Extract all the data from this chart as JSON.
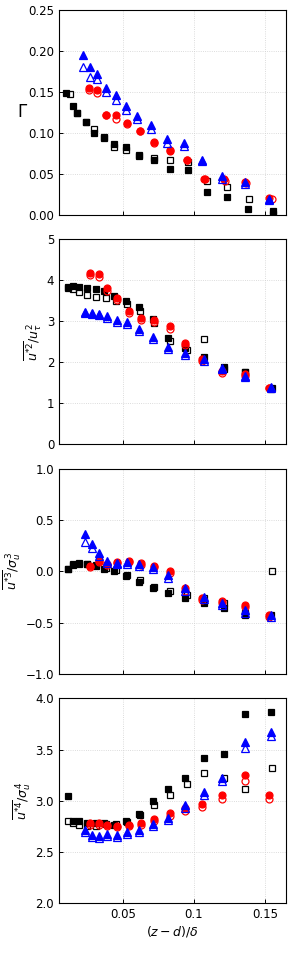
{
  "panel1_ylim": [
    0,
    0.25
  ],
  "panel1_yticks": [
    0,
    0.05,
    0.1,
    0.15,
    0.2,
    0.25
  ],
  "panel2_ylim": [
    0,
    5
  ],
  "panel2_yticks": [
    0,
    1,
    2,
    3,
    4,
    5
  ],
  "panel3_ylim": [
    -1,
    1
  ],
  "panel3_yticks": [
    -1,
    -0.5,
    0,
    0.5,
    1
  ],
  "panel4_ylim": [
    2,
    4
  ],
  "panel4_yticks": [
    2,
    2.5,
    3,
    3.5,
    4
  ],
  "xlabel": "$(z-d)/\\delta$",
  "black_sq_filled_x1": [
    0.01,
    0.015,
    0.018,
    0.024,
    0.03,
    0.037,
    0.044,
    0.052,
    0.061,
    0.072,
    0.083,
    0.096,
    0.109,
    0.123,
    0.138,
    0.156
  ],
  "black_sq_filled_y1": [
    0.148,
    0.133,
    0.124,
    0.113,
    0.1,
    0.095,
    0.086,
    0.082,
    0.072,
    0.067,
    0.056,
    0.054,
    0.028,
    0.022,
    0.007,
    0.004
  ],
  "black_sq_open_x1": [
    0.013,
    0.018,
    0.024,
    0.03,
    0.037,
    0.044,
    0.052,
    0.061,
    0.072,
    0.083,
    0.096,
    0.109,
    0.123,
    0.139,
    0.156
  ],
  "black_sq_open_y1": [
    0.147,
    0.124,
    0.113,
    0.104,
    0.094,
    0.083,
    0.079,
    0.073,
    0.069,
    0.066,
    0.064,
    0.041,
    0.034,
    0.019,
    0.001
  ],
  "red_circ_filled_x1": [
    0.026,
    0.032,
    0.038,
    0.045,
    0.053,
    0.062,
    0.072,
    0.083,
    0.095,
    0.107,
    0.121,
    0.136,
    0.153
  ],
  "red_circ_filled_y1": [
    0.155,
    0.152,
    0.122,
    0.122,
    0.112,
    0.102,
    0.088,
    0.077,
    0.067,
    0.044,
    0.043,
    0.04,
    0.02
  ],
  "red_circ_open_x1": [
    0.026,
    0.032,
    0.038,
    0.045,
    0.053,
    0.062,
    0.072,
    0.083,
    0.095,
    0.108,
    0.122,
    0.137,
    0.155
  ],
  "red_circ_open_y1": [
    0.152,
    0.148,
    0.121,
    0.117,
    0.11,
    0.102,
    0.087,
    0.079,
    0.066,
    0.044,
    0.041,
    0.039,
    0.019
  ],
  "blue_tri_filled_x1": [
    0.022,
    0.027,
    0.032,
    0.038,
    0.045,
    0.052,
    0.06,
    0.07,
    0.081,
    0.093,
    0.106,
    0.12,
    0.136,
    0.153
  ],
  "blue_tri_filled_y1": [
    0.195,
    0.18,
    0.172,
    0.155,
    0.146,
    0.133,
    0.12,
    0.109,
    0.092,
    0.087,
    0.067,
    0.047,
    0.04,
    0.019
  ],
  "blue_tri_open_x1": [
    0.022,
    0.027,
    0.032,
    0.038,
    0.045,
    0.052,
    0.06,
    0.07,
    0.081,
    0.093,
    0.106,
    0.12,
    0.136,
    0.153
  ],
  "blue_tri_open_y1": [
    0.18,
    0.168,
    0.165,
    0.15,
    0.14,
    0.127,
    0.117,
    0.104,
    0.087,
    0.084,
    0.065,
    0.043,
    0.037,
    0.018
  ],
  "black_sq_filled_x2": [
    0.011,
    0.015,
    0.019,
    0.025,
    0.031,
    0.037,
    0.044,
    0.052,
    0.061,
    0.071,
    0.082,
    0.094,
    0.107,
    0.121,
    0.136,
    0.154
  ],
  "black_sq_filled_y2": [
    3.83,
    3.85,
    3.84,
    3.82,
    3.78,
    3.73,
    3.62,
    3.5,
    3.35,
    3.05,
    2.6,
    2.35,
    2.12,
    1.88,
    1.77,
    1.35
  ],
  "black_sq_open_x2": [
    0.011,
    0.015,
    0.019,
    0.025,
    0.031,
    0.038,
    0.045,
    0.053,
    0.062,
    0.072,
    0.083,
    0.095,
    0.107,
    0.121,
    0.136,
    0.155
  ],
  "black_sq_open_y2": [
    3.8,
    3.78,
    3.72,
    3.65,
    3.6,
    3.56,
    3.5,
    3.42,
    3.26,
    2.96,
    2.51,
    2.29,
    2.57,
    1.83,
    1.77,
    1.36
  ],
  "red_circ_filled_x2": [
    0.027,
    0.033,
    0.039,
    0.046,
    0.054,
    0.063,
    0.072,
    0.083,
    0.094,
    0.106,
    0.12,
    0.136,
    0.153
  ],
  "red_circ_filled_y2": [
    4.17,
    4.14,
    3.82,
    3.56,
    3.24,
    3.08,
    3.02,
    2.88,
    2.47,
    2.07,
    1.78,
    1.72,
    1.37
  ],
  "red_circ_open_x2": [
    0.027,
    0.033,
    0.039,
    0.046,
    0.054,
    0.063,
    0.072,
    0.083,
    0.094,
    0.106,
    0.12,
    0.136,
    0.153
  ],
  "red_circ_open_y2": [
    4.12,
    4.08,
    3.74,
    3.52,
    3.19,
    3.02,
    2.97,
    2.82,
    2.42,
    2.02,
    1.74,
    1.67,
    1.36
  ],
  "blue_tri_filled_x2": [
    0.023,
    0.028,
    0.033,
    0.039,
    0.046,
    0.053,
    0.061,
    0.071,
    0.082,
    0.094,
    0.107,
    0.12,
    0.136,
    0.154
  ],
  "blue_tri_filled_y2": [
    3.22,
    3.2,
    3.17,
    3.12,
    3.02,
    2.97,
    2.82,
    2.62,
    2.37,
    2.22,
    2.07,
    1.87,
    1.67,
    1.4
  ],
  "blue_tri_open_x2": [
    0.023,
    0.028,
    0.033,
    0.039,
    0.046,
    0.053,
    0.061,
    0.071,
    0.082,
    0.094,
    0.107,
    0.12,
    0.136,
    0.154
  ],
  "blue_tri_open_y2": [
    3.19,
    3.17,
    3.14,
    3.07,
    2.97,
    2.92,
    2.77,
    2.57,
    2.32,
    2.17,
    2.02,
    1.84,
    1.64,
    1.38
  ],
  "black_sq_filled_x3": [
    0.011,
    0.015,
    0.019,
    0.025,
    0.031,
    0.037,
    0.044,
    0.052,
    0.061,
    0.071,
    0.082,
    0.094,
    0.107,
    0.121,
    0.136,
    0.154
  ],
  "black_sq_filled_y3": [
    0.02,
    0.06,
    0.07,
    0.07,
    0.05,
    0.02,
    0.0,
    -0.05,
    -0.1,
    -0.16,
    -0.21,
    -0.26,
    -0.31,
    -0.36,
    -0.43,
    -0.43
  ],
  "black_sq_open_x3": [
    0.011,
    0.015,
    0.019,
    0.025,
    0.031,
    0.038,
    0.045,
    0.053,
    0.062,
    0.072,
    0.083,
    0.095,
    0.107,
    0.121,
    0.136,
    0.155
  ],
  "black_sq_open_y3": [
    0.02,
    0.07,
    0.08,
    0.07,
    0.06,
    0.03,
    0.01,
    -0.04,
    -0.09,
    -0.15,
    -0.19,
    -0.23,
    -0.26,
    -0.31,
    -0.41,
    0.0
  ],
  "red_circ_filled_x3": [
    0.027,
    0.033,
    0.039,
    0.046,
    0.054,
    0.063,
    0.072,
    0.083,
    0.094,
    0.106,
    0.12,
    0.136,
    0.153
  ],
  "red_circ_filled_y3": [
    0.05,
    0.1,
    0.07,
    0.09,
    0.1,
    0.08,
    0.05,
    0.0,
    -0.16,
    -0.26,
    -0.29,
    -0.33,
    -0.43
  ],
  "red_circ_open_x3": [
    0.027,
    0.033,
    0.039,
    0.046,
    0.054,
    0.063,
    0.072,
    0.083,
    0.094,
    0.106,
    0.12,
    0.136,
    0.153
  ],
  "red_circ_open_y3": [
    0.04,
    0.09,
    0.06,
    0.08,
    0.09,
    0.06,
    0.04,
    -0.02,
    -0.19,
    -0.28,
    -0.31,
    -0.35,
    -0.45
  ],
  "blue_tri_filled_x3": [
    0.023,
    0.028,
    0.033,
    0.039,
    0.046,
    0.053,
    0.061,
    0.071,
    0.082,
    0.094,
    0.107,
    0.12,
    0.136,
    0.154
  ],
  "blue_tri_filled_y3": [
    0.36,
    0.27,
    0.18,
    0.1,
    0.08,
    0.09,
    0.07,
    0.04,
    -0.04,
    -0.16,
    -0.25,
    -0.31,
    -0.38,
    -0.43
  ],
  "blue_tri_open_x3": [
    0.023,
    0.028,
    0.033,
    0.039,
    0.046,
    0.053,
    0.061,
    0.071,
    0.082,
    0.094,
    0.107,
    0.12,
    0.136,
    0.154
  ],
  "blue_tri_open_y3": [
    0.29,
    0.23,
    0.15,
    0.08,
    0.07,
    0.07,
    0.05,
    0.02,
    -0.07,
    -0.19,
    -0.27,
    -0.33,
    -0.41,
    -0.45
  ],
  "black_sq_filled_x4": [
    0.011,
    0.015,
    0.019,
    0.025,
    0.031,
    0.037,
    0.044,
    0.052,
    0.061,
    0.071,
    0.082,
    0.094,
    0.107,
    0.121,
    0.136,
    0.154
  ],
  "black_sq_filled_y4": [
    3.05,
    2.8,
    2.8,
    2.78,
    2.78,
    2.78,
    2.76,
    2.8,
    2.87,
    3.0,
    3.12,
    3.22,
    3.42,
    3.46,
    3.85,
    3.87
  ],
  "black_sq_open_x4": [
    0.011,
    0.015,
    0.019,
    0.025,
    0.031,
    0.038,
    0.045,
    0.053,
    0.062,
    0.072,
    0.083,
    0.095,
    0.107,
    0.121,
    0.136,
    0.155
  ],
  "black_sq_open_y4": [
    2.8,
    2.78,
    2.76,
    2.75,
    2.75,
    2.77,
    2.77,
    2.79,
    2.86,
    2.96,
    3.06,
    3.16,
    3.27,
    3.22,
    3.12,
    3.32
  ],
  "red_circ_filled_x4": [
    0.027,
    0.033,
    0.039,
    0.046,
    0.054,
    0.063,
    0.072,
    0.083,
    0.094,
    0.106,
    0.12,
    0.136,
    0.153
  ],
  "red_circ_filled_y4": [
    2.78,
    2.78,
    2.76,
    2.75,
    2.76,
    2.78,
    2.82,
    2.88,
    2.93,
    2.97,
    3.06,
    3.25,
    3.06
  ],
  "red_circ_open_x4": [
    0.027,
    0.033,
    0.039,
    0.046,
    0.054,
    0.063,
    0.072,
    0.083,
    0.094,
    0.106,
    0.12,
    0.136,
    0.153
  ],
  "red_circ_open_y4": [
    2.76,
    2.76,
    2.75,
    2.74,
    2.75,
    2.76,
    2.8,
    2.85,
    2.9,
    2.94,
    3.02,
    3.19,
    3.02
  ],
  "blue_tri_filled_x4": [
    0.023,
    0.028,
    0.033,
    0.039,
    0.046,
    0.053,
    0.061,
    0.071,
    0.082,
    0.094,
    0.107,
    0.12,
    0.136,
    0.154
  ],
  "blue_tri_filled_y4": [
    2.72,
    2.67,
    2.66,
    2.68,
    2.67,
    2.7,
    2.72,
    2.77,
    2.83,
    2.96,
    3.09,
    3.22,
    3.57,
    3.67
  ],
  "blue_tri_open_x4": [
    0.023,
    0.028,
    0.033,
    0.039,
    0.046,
    0.053,
    0.061,
    0.071,
    0.082,
    0.094,
    0.107,
    0.12,
    0.136,
    0.154
  ],
  "blue_tri_open_y4": [
    2.7,
    2.65,
    2.64,
    2.66,
    2.65,
    2.68,
    2.7,
    2.75,
    2.81,
    2.93,
    3.06,
    3.19,
    3.52,
    3.63
  ],
  "xlim": [
    0.005,
    0.165
  ],
  "xticks": [
    0.05,
    0.1,
    0.15
  ],
  "xticklabels": [
    "0.05",
    "0.1",
    "0.15"
  ],
  "grid_color": "#d0d0d0",
  "bg_color": "#ffffff",
  "marker_size": 4.5,
  "marker_size_tri": 5.5,
  "mew": 0.9
}
